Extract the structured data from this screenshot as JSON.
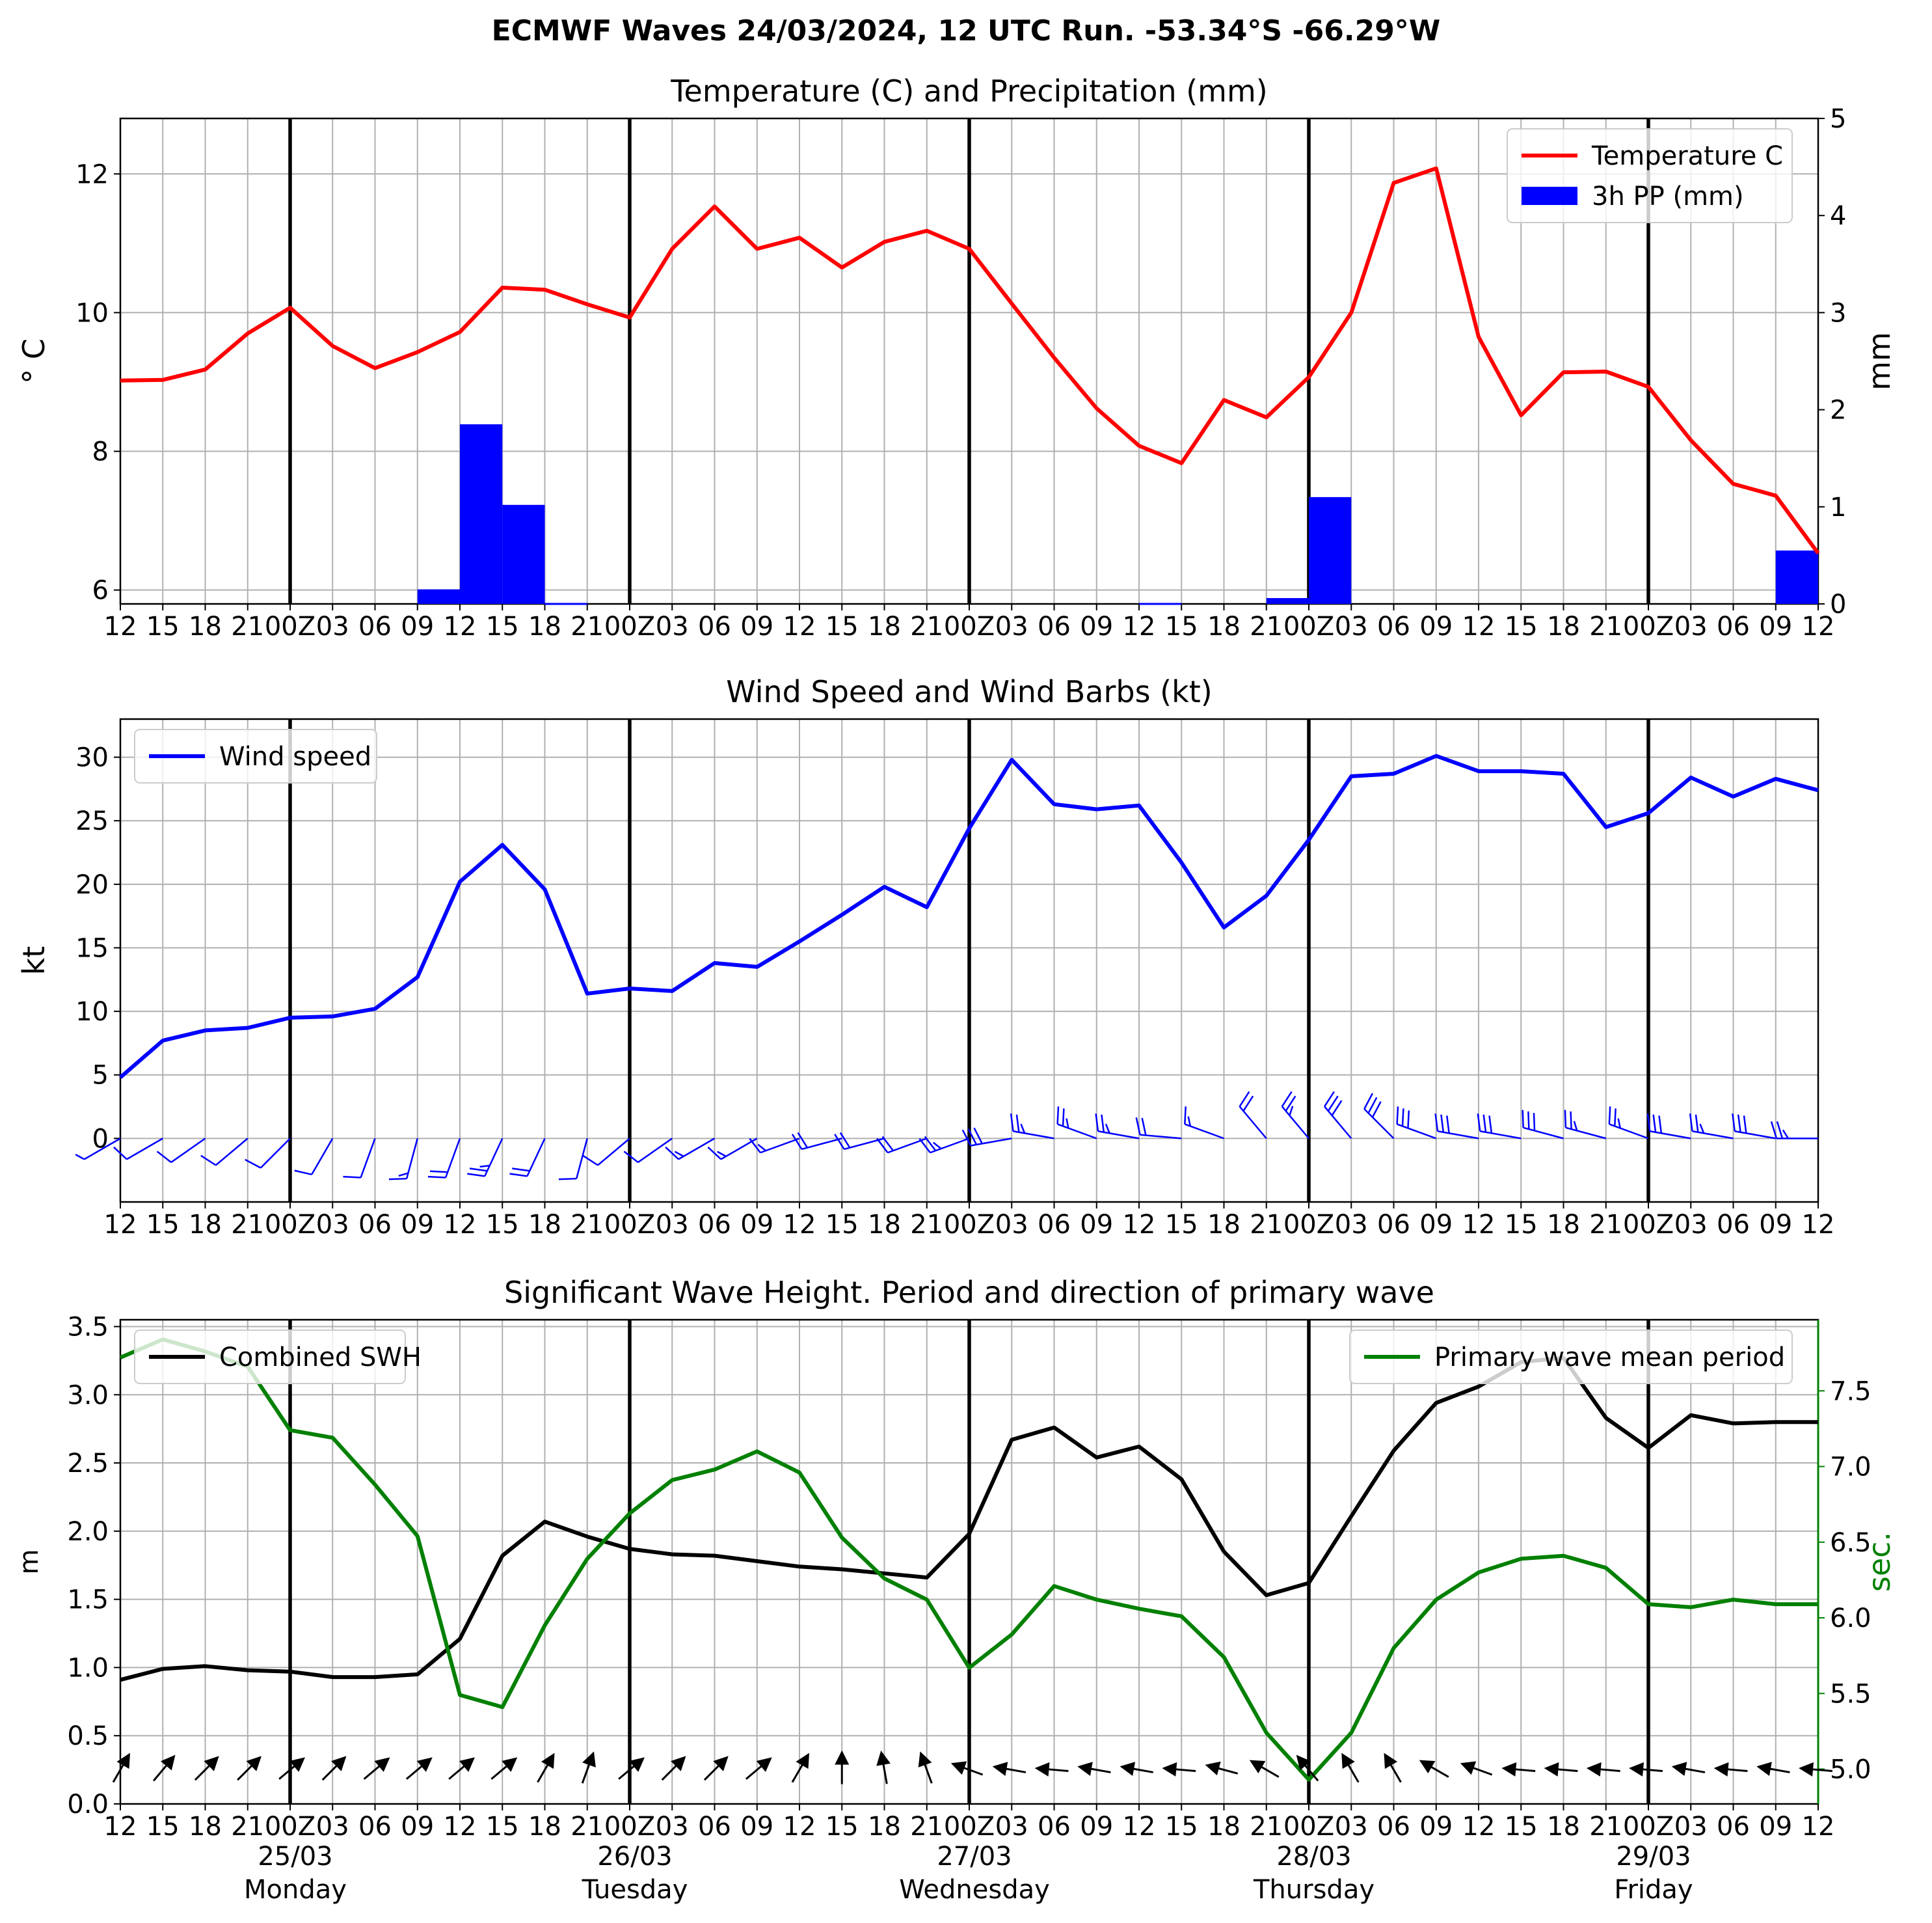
{
  "figure": {
    "title": "ECMWF Waves 24/03/2024, 12 UTC Run. -53.34°S -66.29°W"
  },
  "time_axis": {
    "tick_labels": [
      "12",
      "15",
      "18",
      "21",
      "00Z",
      "03",
      "06",
      "09",
      "12",
      "15",
      "18",
      "21",
      "00Z",
      "03",
      "06",
      "09",
      "12",
      "15",
      "18",
      "21",
      "00Z",
      "03",
      "06",
      "09",
      "12",
      "15",
      "18",
      "21",
      "00Z",
      "03",
      "06",
      "09",
      "12",
      "15",
      "18",
      "21",
      "00Z",
      "03",
      "06",
      "09",
      "12"
    ],
    "days": [
      {
        "date": "25/03",
        "weekday": "Monday"
      },
      {
        "date": "26/03",
        "weekday": "Tuesday"
      },
      {
        "date": "27/03",
        "weekday": "Wednesday"
      },
      {
        "date": "28/03",
        "weekday": "Thursday"
      },
      {
        "date": "29/03",
        "weekday": "Friday"
      }
    ]
  },
  "chart_data": [
    {
      "type": "line",
      "title": "Temperature (C) and Precipitation (mm)",
      "ylabel": "$^\\circ$C",
      "ylabel_display": "° C",
      "y2label": "mm",
      "ylim": [
        5.8,
        12.8
      ],
      "yticks": [
        6,
        8,
        10,
        12
      ],
      "y2lim": [
        0,
        5
      ],
      "y2ticks": [
        0,
        1,
        2,
        3,
        4,
        5
      ],
      "grid": true,
      "legend": "top-right",
      "series": [
        {
          "name": "Temperature C",
          "type": "line",
          "color": "#ff0000",
          "values": [
            9.02,
            9.03,
            9.18,
            9.7,
            10.07,
            9.52,
            9.2,
            9.43,
            9.72,
            10.36,
            10.33,
            10.12,
            9.93,
            10.92,
            11.53,
            10.92,
            11.08,
            10.65,
            11.02,
            11.18,
            10.92,
            10.13,
            9.35,
            8.62,
            8.08,
            7.83,
            8.74,
            8.49,
            9.07,
            10.0,
            11.87,
            12.08,
            9.65,
            8.52,
            9.14,
            9.15,
            8.93,
            8.16,
            7.53,
            7.36,
            6.53
          ]
        },
        {
          "name": "3h PP (mm)",
          "type": "bar",
          "color": "#0000ff",
          "values": [
            0.01,
            0,
            0,
            0,
            0,
            0,
            0,
            0,
            0.15,
            1.85,
            1.02,
            0.01,
            0,
            0,
            0,
            0,
            0,
            0,
            0,
            0,
            0,
            0,
            0,
            0,
            0,
            0.01,
            0,
            0,
            0.06,
            1.1,
            0,
            0,
            0,
            0,
            0,
            0,
            0,
            0,
            0,
            0,
            0.55
          ]
        }
      ]
    },
    {
      "type": "line",
      "title": "Wind Speed and Wind Barbs (kt)",
      "ylabel": "kt",
      "ylim": [
        -5,
        33
      ],
      "yticks": [
        0,
        5,
        10,
        15,
        20,
        25,
        30
      ],
      "grid": true,
      "legend": "top-left",
      "series": [
        {
          "name": "Wind speed",
          "color": "#0000ff",
          "values": [
            4.8,
            7.7,
            8.5,
            8.7,
            9.5,
            9.6,
            10.2,
            12.7,
            20.2,
            23.1,
            19.6,
            11.4,
            11.8,
            11.6,
            13.8,
            13.5,
            15.5,
            17.6,
            19.8,
            18.2,
            24.4,
            29.8,
            26.3,
            25.9,
            26.2,
            21.7,
            16.6,
            19.1,
            23.5,
            28.5,
            28.7,
            30.1,
            28.9,
            28.9,
            28.7,
            24.5,
            25.6,
            28.4,
            26.9,
            28.3,
            27.4
          ]
        }
      ],
      "barbs": {
        "color": "#0000ff",
        "baseline": 0,
        "direction_deg": [
          240,
          240,
          235,
          230,
          225,
          210,
          200,
          195,
          200,
          205,
          205,
          195,
          230,
          235,
          240,
          240,
          250,
          255,
          255,
          250,
          250,
          260,
          280,
          290,
          280,
          275,
          290,
          320,
          320,
          320,
          315,
          290,
          280,
          280,
          285,
          285,
          290,
          280,
          280,
          280,
          270
        ]
      }
    },
    {
      "type": "line",
      "title": "Significant Wave Height. Period and direction of primary wave",
      "ylabel": "m",
      "y2label": "sec.",
      "ylim": [
        0,
        3.55
      ],
      "yticks": [
        0.0,
        0.5,
        1.0,
        1.5,
        2.0,
        2.5,
        3.0,
        3.5
      ],
      "y2lim": [
        4.77,
        7.97
      ],
      "y2ticks": [
        5.0,
        5.5,
        6.0,
        6.5,
        7.0,
        7.5
      ],
      "grid": true,
      "legends": [
        "top-left",
        "top-right"
      ],
      "series": [
        {
          "name": "Combined SWH",
          "color": "#000000",
          "axis": "left",
          "values": [
            0.91,
            0.99,
            1.01,
            0.98,
            0.97,
            0.93,
            0.93,
            0.95,
            1.21,
            1.82,
            2.07,
            1.96,
            1.87,
            1.83,
            1.82,
            1.78,
            1.74,
            1.72,
            1.69,
            1.66,
            1.98,
            2.67,
            2.76,
            2.54,
            2.62,
            2.38,
            1.85,
            1.53,
            1.62,
            2.11,
            2.59,
            2.94,
            3.06,
            3.24,
            3.27,
            2.83,
            2.61,
            2.85,
            2.79,
            2.8,
            2.8
          ]
        },
        {
          "name": "Primary wave mean period",
          "color": "#008000",
          "axis": "right",
          "values": [
            7.72,
            7.84,
            7.76,
            7.66,
            7.24,
            7.19,
            6.88,
            6.54,
            5.49,
            5.41,
            5.95,
            6.39,
            6.69,
            6.91,
            6.98,
            7.1,
            6.96,
            6.53,
            6.26,
            6.12,
            5.67,
            5.89,
            6.21,
            6.12,
            6.06,
            6.01,
            5.74,
            5.24,
            4.93,
            5.24,
            5.8,
            6.12,
            6.3,
            6.39,
            6.41,
            6.33,
            6.09,
            6.07,
            6.12,
            6.09,
            6.09
          ]
        }
      ],
      "wave_direction": {
        "color": "#000000",
        "direction_deg": [
          210,
          220,
          225,
          225,
          230,
          225,
          230,
          230,
          230,
          230,
          210,
          200,
          230,
          225,
          225,
          230,
          210,
          180,
          170,
          160,
          110,
          100,
          95,
          100,
          100,
          95,
          105,
          120,
          140,
          150,
          150,
          120,
          110,
          95,
          95,
          95,
          95,
          100,
          95,
          100,
          95
        ]
      }
    }
  ]
}
